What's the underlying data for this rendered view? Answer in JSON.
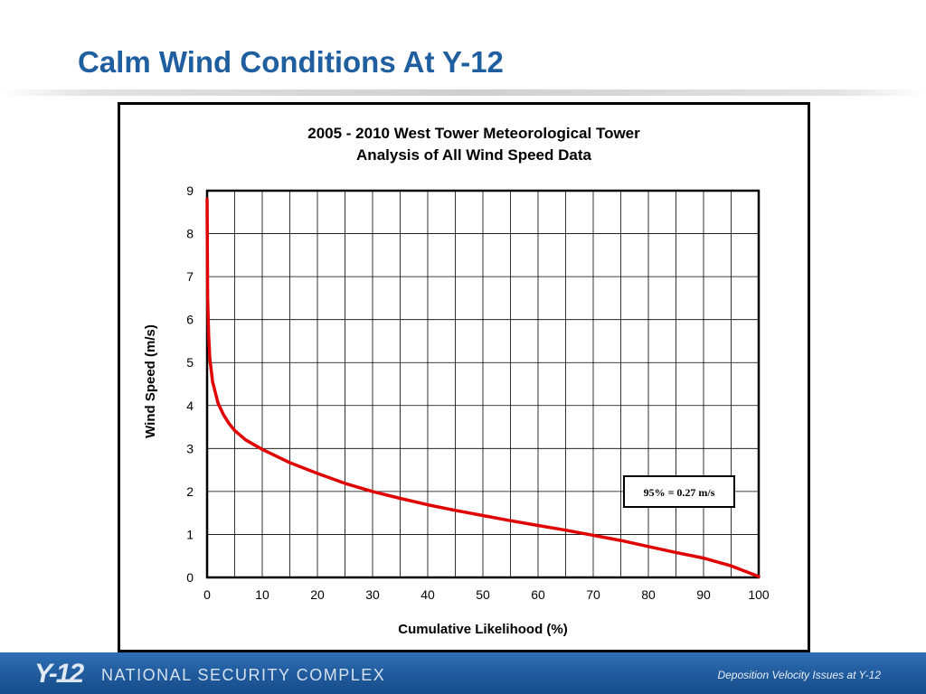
{
  "slide": {
    "title": "Calm Wind Conditions At Y-12"
  },
  "footer": {
    "logo_text": "Y-12",
    "org_name": "NATIONAL SECURITY COMPLEX",
    "note": "Deposition Velocity Issues at Y-12"
  },
  "chart_data": {
    "type": "line",
    "title": "2005 - 2010 West Tower Meteorological Tower",
    "subtitle": "Analysis of All Wind Speed Data",
    "xlabel": "Cumulative Likelihood (%)",
    "ylabel": "Wind Speed (m/s)",
    "xlim": [
      0,
      100
    ],
    "ylim": [
      0,
      9
    ],
    "x_ticks": [
      0,
      10,
      20,
      30,
      40,
      50,
      60,
      70,
      80,
      90,
      100
    ],
    "y_ticks": [
      0,
      1,
      2,
      3,
      4,
      5,
      6,
      7,
      8,
      9
    ],
    "x_grid_step": 5,
    "y_grid_step": 1,
    "grid": true,
    "line_color": "#e00000",
    "series": [
      {
        "x": [
          0,
          0.1,
          0.3,
          0.5,
          1,
          2,
          3,
          4,
          5,
          7,
          10,
          15,
          20,
          25,
          30,
          35,
          40,
          45,
          50,
          55,
          60,
          65,
          70,
          75,
          80,
          85,
          90,
          95,
          98,
          100
        ],
        "values": [
          8.8,
          6.5,
          5.6,
          5.1,
          4.55,
          4.05,
          3.78,
          3.58,
          3.42,
          3.2,
          2.98,
          2.67,
          2.42,
          2.19,
          2.0,
          1.84,
          1.69,
          1.56,
          1.44,
          1.32,
          1.21,
          1.1,
          0.98,
          0.86,
          0.72,
          0.58,
          0.45,
          0.27,
          0.12,
          0.02
        ]
      }
    ],
    "annotation": "95% = 0.27 m/s"
  }
}
